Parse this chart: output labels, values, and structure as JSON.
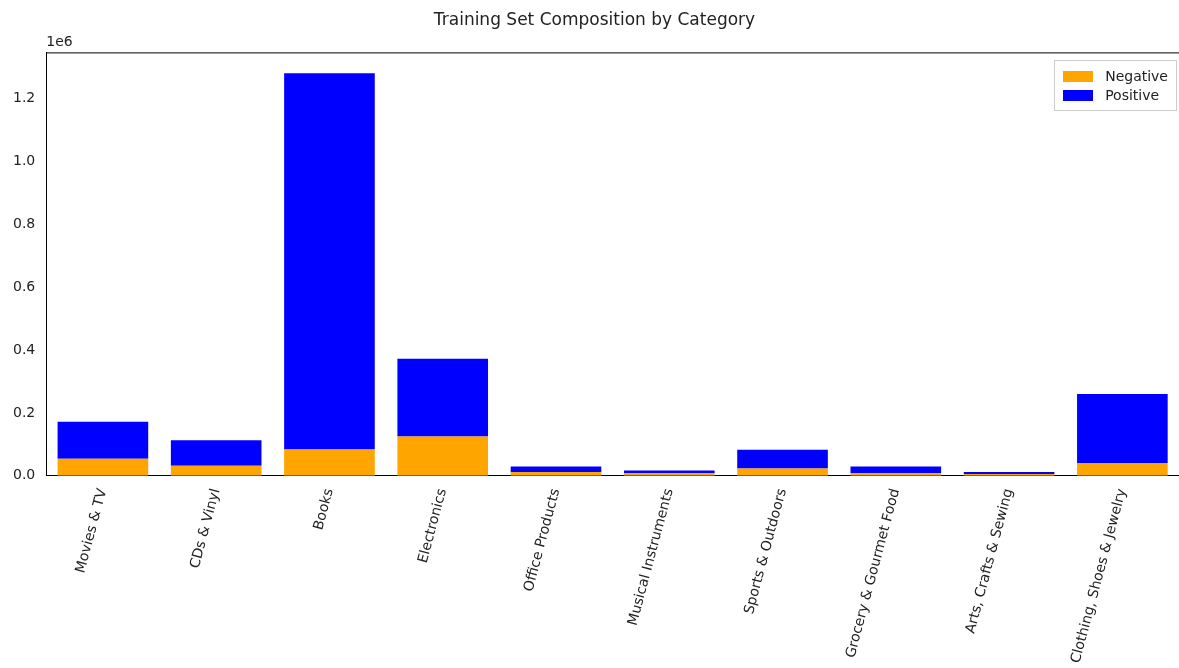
{
  "chart_data": {
    "type": "bar",
    "title": "Training Set Composition by Category",
    "categories": [
      "Movies & TV",
      "CDs & Vinyl",
      "Books",
      "Electronics",
      "Office Products",
      "Musical Instruments",
      "Sports & Outdoors",
      "Grocery & Gourmet Food",
      "Arts, Crafts & Sewing",
      "Clothing, Shoes & Jewelry"
    ],
    "series": [
      {
        "name": "Negative",
        "color": "#ffa500",
        "values": [
          0.054,
          0.032,
          0.084,
          0.125,
          0.012,
          0.008,
          0.023,
          0.008,
          0.006,
          0.041
        ]
      },
      {
        "name": "Positive",
        "color": "#0000ff",
        "values": [
          0.118,
          0.081,
          1.195,
          0.247,
          0.018,
          0.009,
          0.06,
          0.022,
          0.006,
          0.219
        ]
      }
    ],
    "stacked": true,
    "ylim": [
      0,
      1.345
    ],
    "yticks": [
      {
        "value": 0,
        "label": "0.0"
      },
      0.2,
      0.4,
      0.6,
      0.8,
      {
        "value": 1,
        "label": "1.0"
      },
      1.2
    ],
    "annotations": [
      "1e6"
    ],
    "grid": false,
    "legend": "top right"
  }
}
